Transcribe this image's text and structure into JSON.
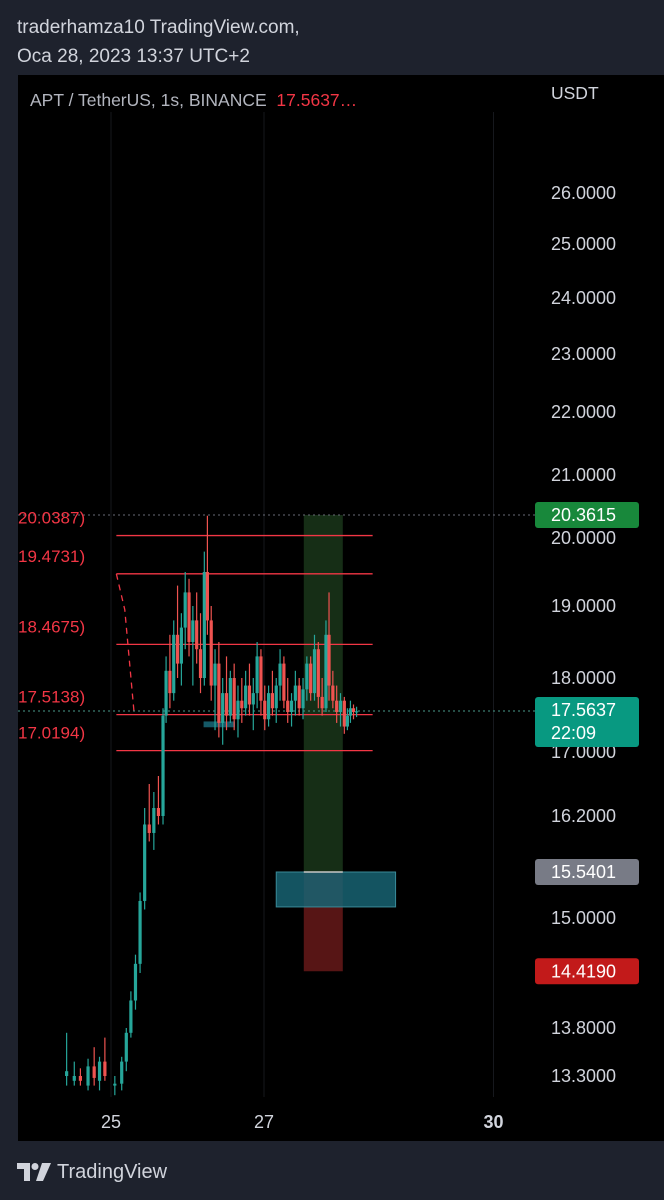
{
  "header": {
    "line1": "traderhamza10 TradingView.com,",
    "line2": "Oca 28, 2023 13:37 UTC+2"
  },
  "symbol": {
    "name": "APT / TetherUS, 1s, BINANCE",
    "price": "17.5637…"
  },
  "unit": "USDT",
  "footer": {
    "brand": "TradingView",
    "logo_icon": "tradingview-logo-icon"
  },
  "colors": {
    "up": "#26a69a",
    "down": "#ef5350",
    "line": "#f23645",
    "profit_zone": "#1b3a1b",
    "loss_zone": "#5c1616",
    "box": "#176372",
    "last_price": "#089981",
    "target_label": "#18883b",
    "stop_label": "#c21a1a",
    "entry_label": "#787b86"
  },
  "chart_data": {
    "type": "candlestick",
    "title": "",
    "xlabel": "",
    "ylabel": "",
    "x_ticks": [
      {
        "label": "25",
        "x": 25.0,
        "bold": false
      },
      {
        "label": "27",
        "x": 27.0,
        "bold": false
      },
      {
        "label": "30",
        "x": 30.0,
        "bold": true
      }
    ],
    "x_range": [
      24.4,
      31.1
    ],
    "y_ticks": [
      {
        "label": "26.0000",
        "v": 26.0
      },
      {
        "label": "25.0000",
        "v": 25.0
      },
      {
        "label": "24.0000",
        "v": 24.0
      },
      {
        "label": "23.0000",
        "v": 23.0
      },
      {
        "label": "22.0000",
        "v": 22.0
      },
      {
        "label": "21.0000",
        "v": 21.0
      },
      {
        "label": "20.0000",
        "v": 20.0
      },
      {
        "label": "19.0000",
        "v": 19.0
      },
      {
        "label": "18.0000",
        "v": 18.0
      },
      {
        "label": "17.0000",
        "v": 17.0
      },
      {
        "label": "16.2000",
        "v": 16.2
      },
      {
        "label": "15.0000",
        "v": 15.0
      },
      {
        "label": "13.8000",
        "v": 13.8
      },
      {
        "label": "13.3000",
        "v": 13.3
      }
    ],
    "horizontal_levels": [
      {
        "label": "20.0387)",
        "v": 20.0387
      },
      {
        "label": "19.4731)",
        "v": 19.4731
      },
      {
        "label": "18.4675)",
        "v": 18.4675
      },
      {
        "label": "17.5138)",
        "v": 17.5138
      },
      {
        "label": "17.0194)",
        "v": 17.0194
      }
    ],
    "price_labels": [
      {
        "label": "20.3615",
        "v": 20.3615,
        "kind": "target"
      },
      {
        "label": "17.5637",
        "sublabel": "22:09",
        "v": 17.5637,
        "kind": "last"
      },
      {
        "label": "15.5401",
        "v": 15.5401,
        "kind": "entry"
      },
      {
        "label": "14.4190",
        "v": 14.419,
        "kind": "stop"
      }
    ],
    "candles": [
      {
        "x": 24.42,
        "o": 13.3,
        "h": 13.75,
        "l": 13.2,
        "c": 13.35
      },
      {
        "x": 24.52,
        "o": 13.25,
        "h": 13.45,
        "l": 13.2,
        "c": 13.3
      },
      {
        "x": 24.6,
        "o": 13.3,
        "h": 13.38,
        "l": 13.2,
        "c": 13.25
      },
      {
        "x": 24.7,
        "o": 13.2,
        "h": 13.48,
        "l": 13.15,
        "c": 13.4
      },
      {
        "x": 24.78,
        "o": 13.4,
        "h": 13.6,
        "l": 13.2,
        "c": 13.28
      },
      {
        "x": 24.85,
        "o": 13.25,
        "h": 13.5,
        "l": 13.15,
        "c": 13.45
      },
      {
        "x": 24.92,
        "o": 13.45,
        "h": 13.7,
        "l": 13.25,
        "c": 13.3
      },
      {
        "x": 25.05,
        "o": 13.2,
        "h": 13.3,
        "l": 13.1,
        "c": 13.22
      },
      {
        "x": 25.14,
        "o": 13.22,
        "h": 13.5,
        "l": 13.15,
        "c": 13.45
      },
      {
        "x": 25.2,
        "o": 13.45,
        "h": 13.8,
        "l": 13.35,
        "c": 13.75
      },
      {
        "x": 25.26,
        "o": 13.75,
        "h": 14.2,
        "l": 13.7,
        "c": 14.1
      },
      {
        "x": 25.32,
        "o": 14.1,
        "h": 14.6,
        "l": 14.0,
        "c": 14.5
      },
      {
        "x": 25.38,
        "o": 14.5,
        "h": 15.3,
        "l": 14.4,
        "c": 15.2
      },
      {
        "x": 25.44,
        "o": 15.2,
        "h": 16.3,
        "l": 15.1,
        "c": 16.1
      },
      {
        "x": 25.5,
        "o": 16.1,
        "h": 16.6,
        "l": 15.9,
        "c": 16.0
      },
      {
        "x": 25.56,
        "o": 16.0,
        "h": 16.5,
        "l": 15.8,
        "c": 16.3
      },
      {
        "x": 25.62,
        "o": 16.3,
        "h": 16.7,
        "l": 16.1,
        "c": 16.2
      },
      {
        "x": 25.68,
        "o": 16.2,
        "h": 17.6,
        "l": 16.1,
        "c": 17.5
      },
      {
        "x": 25.72,
        "o": 17.5,
        "h": 18.3,
        "l": 17.4,
        "c": 18.1
      },
      {
        "x": 25.77,
        "o": 18.1,
        "h": 18.6,
        "l": 17.6,
        "c": 17.8
      },
      {
        "x": 25.82,
        "o": 17.8,
        "h": 18.8,
        "l": 17.7,
        "c": 18.6
      },
      {
        "x": 25.87,
        "o": 18.6,
        "h": 19.3,
        "l": 18.0,
        "c": 18.2
      },
      {
        "x": 25.92,
        "o": 18.2,
        "h": 18.9,
        "l": 17.9,
        "c": 18.7
      },
      {
        "x": 25.97,
        "o": 18.7,
        "h": 19.5,
        "l": 18.4,
        "c": 19.2
      },
      {
        "x": 26.02,
        "o": 19.2,
        "h": 19.4,
        "l": 18.3,
        "c": 18.5
      },
      {
        "x": 26.07,
        "o": 18.5,
        "h": 19.0,
        "l": 17.9,
        "c": 18.8
      },
      {
        "x": 26.12,
        "o": 18.8,
        "h": 19.2,
        "l": 18.2,
        "c": 18.4
      },
      {
        "x": 26.17,
        "o": 18.4,
        "h": 18.9,
        "l": 17.8,
        "c": 18.0
      },
      {
        "x": 26.22,
        "o": 18.0,
        "h": 19.8,
        "l": 17.9,
        "c": 19.5
      },
      {
        "x": 26.26,
        "o": 19.5,
        "h": 20.35,
        "l": 18.6,
        "c": 18.8
      },
      {
        "x": 26.31,
        "o": 18.8,
        "h": 19.0,
        "l": 17.7,
        "c": 17.9
      },
      {
        "x": 26.36,
        "o": 17.9,
        "h": 18.4,
        "l": 17.3,
        "c": 18.2
      },
      {
        "x": 26.41,
        "o": 18.2,
        "h": 18.5,
        "l": 17.2,
        "c": 17.4
      },
      {
        "x": 26.46,
        "o": 17.4,
        "h": 18.0,
        "l": 17.1,
        "c": 17.8
      },
      {
        "x": 26.51,
        "o": 17.8,
        "h": 18.3,
        "l": 17.3,
        "c": 17.5
      },
      {
        "x": 26.56,
        "o": 17.5,
        "h": 18.1,
        "l": 17.4,
        "c": 18.0
      },
      {
        "x": 26.61,
        "o": 18.0,
        "h": 18.2,
        "l": 17.3,
        "c": 17.45
      },
      {
        "x": 26.66,
        "o": 17.45,
        "h": 17.9,
        "l": 17.2,
        "c": 17.7
      },
      {
        "x": 26.71,
        "o": 17.7,
        "h": 18.0,
        "l": 17.4,
        "c": 17.6
      },
      {
        "x": 26.76,
        "o": 17.6,
        "h": 18.1,
        "l": 17.5,
        "c": 17.9
      },
      {
        "x": 26.81,
        "o": 17.9,
        "h": 18.2,
        "l": 17.5,
        "c": 17.65
      },
      {
        "x": 26.86,
        "o": 17.65,
        "h": 18.0,
        "l": 17.3,
        "c": 17.8
      },
      {
        "x": 26.91,
        "o": 17.8,
        "h": 18.5,
        "l": 17.6,
        "c": 18.3
      },
      {
        "x": 26.96,
        "o": 18.3,
        "h": 18.4,
        "l": 17.5,
        "c": 17.7
      },
      {
        "x": 27.01,
        "o": 17.7,
        "h": 17.9,
        "l": 17.3,
        "c": 17.45
      },
      {
        "x": 27.06,
        "o": 17.45,
        "h": 17.9,
        "l": 17.35,
        "c": 17.8
      },
      {
        "x": 27.11,
        "o": 17.8,
        "h": 18.1,
        "l": 17.5,
        "c": 17.6
      },
      {
        "x": 27.16,
        "o": 17.6,
        "h": 18.0,
        "l": 17.4,
        "c": 17.9
      },
      {
        "x": 27.21,
        "o": 17.9,
        "h": 18.4,
        "l": 17.7,
        "c": 18.2
      },
      {
        "x": 27.26,
        "o": 18.2,
        "h": 18.3,
        "l": 17.6,
        "c": 17.7
      },
      {
        "x": 27.31,
        "o": 17.7,
        "h": 18.0,
        "l": 17.4,
        "c": 17.55
      },
      {
        "x": 27.36,
        "o": 17.55,
        "h": 17.8,
        "l": 17.35,
        "c": 17.7
      },
      {
        "x": 27.41,
        "o": 17.7,
        "h": 18.1,
        "l": 17.5,
        "c": 17.9
      },
      {
        "x": 27.46,
        "o": 17.9,
        "h": 18.0,
        "l": 17.5,
        "c": 17.6
      },
      {
        "x": 27.51,
        "o": 17.6,
        "h": 18.0,
        "l": 17.45,
        "c": 17.85
      },
      {
        "x": 27.56,
        "o": 17.85,
        "h": 18.3,
        "l": 17.7,
        "c": 18.2
      },
      {
        "x": 27.61,
        "o": 18.2,
        "h": 18.3,
        "l": 17.7,
        "c": 17.8
      },
      {
        "x": 27.66,
        "o": 17.8,
        "h": 18.6,
        "l": 17.7,
        "c": 18.4
      },
      {
        "x": 27.71,
        "o": 18.4,
        "h": 18.5,
        "l": 17.6,
        "c": 17.75
      },
      {
        "x": 27.76,
        "o": 17.75,
        "h": 18.0,
        "l": 17.5,
        "c": 17.6
      },
      {
        "x": 27.81,
        "o": 17.6,
        "h": 18.8,
        "l": 17.55,
        "c": 18.6
      },
      {
        "x": 27.85,
        "o": 18.6,
        "h": 19.2,
        "l": 17.7,
        "c": 17.9
      },
      {
        "x": 27.9,
        "o": 17.9,
        "h": 18.1,
        "l": 17.6,
        "c": 17.7
      },
      {
        "x": 27.95,
        "o": 17.7,
        "h": 17.9,
        "l": 17.4,
        "c": 17.55
      },
      {
        "x": 28.0,
        "o": 17.55,
        "h": 17.8,
        "l": 17.35,
        "c": 17.7
      },
      {
        "x": 28.05,
        "o": 17.7,
        "h": 17.75,
        "l": 17.25,
        "c": 17.35
      },
      {
        "x": 28.09,
        "o": 17.35,
        "h": 17.6,
        "l": 17.3,
        "c": 17.5
      },
      {
        "x": 28.13,
        "o": 17.5,
        "h": 17.7,
        "l": 17.4,
        "c": 17.6
      },
      {
        "x": 28.17,
        "o": 17.6,
        "h": 17.65,
        "l": 17.45,
        "c": 17.55
      },
      {
        "x": 28.21,
        "o": 17.55,
        "h": 17.62,
        "l": 17.48,
        "c": 17.56
      }
    ],
    "annotations": {
      "level_line_x_range": [
        25.07,
        28.42
      ],
      "dashed_line": [
        {
          "x": 25.07,
          "y": 19.4731
        },
        {
          "x": 25.18,
          "y": 18.95
        },
        {
          "x": 25.3,
          "y": 17.56
        }
      ],
      "support_box": {
        "x0": 26.21,
        "x1": 26.62,
        "y0": 17.34,
        "y1": 17.42
      },
      "target_zone": {
        "x0": 27.52,
        "x1": 28.03,
        "y_top": 20.3615,
        "y_bottom": 15.5401
      },
      "stop_zone": {
        "x0": 27.52,
        "x1": 28.03,
        "y_top": 15.5401,
        "y_bottom": 14.419
      },
      "position_box": {
        "x0": 27.16,
        "x1": 28.72,
        "y_top": 15.54,
        "y_bottom": 15.13
      }
    }
  }
}
